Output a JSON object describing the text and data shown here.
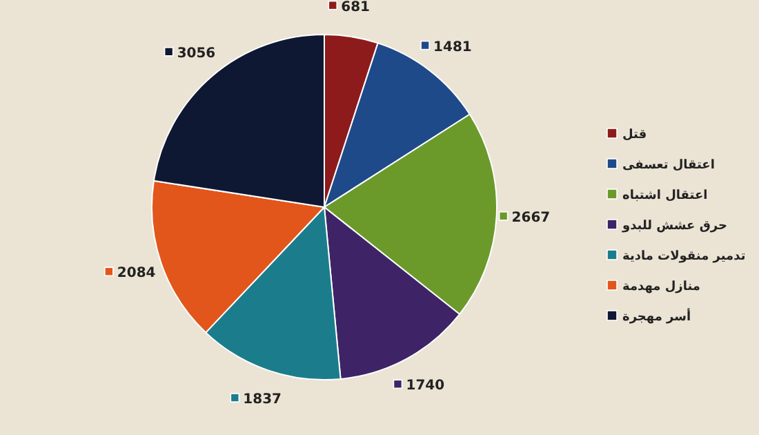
{
  "chart_data": {
    "type": "pie",
    "categories": [
      "قتل",
      "اعتقال تعسفى",
      "اعتقال اشتباه",
      "حرق عشش للبدو",
      "تدمير منقولات مادية",
      "منازل مهدمة",
      "أسر مهجرة"
    ],
    "values": [
      681,
      1481,
      2667,
      1740,
      1837,
      2084,
      3056
    ],
    "colors": [
      "#8e1b1b",
      "#1f4a8a",
      "#6b9a2b",
      "#3e2466",
      "#1b7d8c",
      "#e2561b",
      "#0e1833"
    ],
    "data_labels": true,
    "legend": "right"
  }
}
